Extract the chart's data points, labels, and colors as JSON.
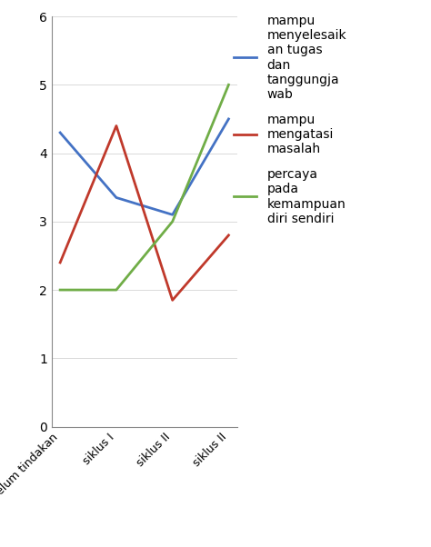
{
  "x_labels": [
    "sebelum tindakan",
    "siklus I",
    "siklus II",
    "siklus II"
  ],
  "series": [
    {
      "name": "mampu\nmenyelesaik\nan tugas\ndan\ntanggungja\nwab",
      "color": "#4472C4",
      "values": [
        4.3,
        3.35,
        3.1,
        4.5
      ]
    },
    {
      "name": "mampu\nmengatasi\nmasalah",
      "color": "#C0392B",
      "values": [
        2.4,
        4.4,
        1.85,
        2.8
      ]
    },
    {
      "name": "percaya\npada\nkemampuan\ndiri sendiri",
      "color": "#70AD47",
      "values": [
        2.0,
        2.0,
        3.0,
        5.0
      ]
    }
  ],
  "ylim": [
    0,
    6
  ],
  "yticks": [
    0,
    1,
    2,
    3,
    4,
    5,
    6
  ],
  "background_color": "#FFFFFF",
  "linewidth": 2.0,
  "legend_fontsize": 10,
  "tick_fontsize": 10,
  "xlabel_fontsize": 9
}
